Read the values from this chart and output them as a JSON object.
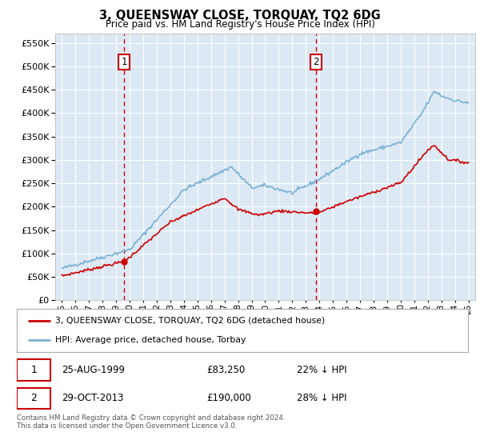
{
  "title": "3, QUEENSWAY CLOSE, TORQUAY, TQ2 6DG",
  "subtitle": "Price paid vs. HM Land Registry's House Price Index (HPI)",
  "red_label": "3, QUEENSWAY CLOSE, TORQUAY, TQ2 6DG (detached house)",
  "blue_label": "HPI: Average price, detached house, Torbay",
  "red_color": "#cc0000",
  "blue_color": "#7ab0d4",
  "vline_color": "#cc0000",
  "marker1_value": 83250,
  "marker2_value": 190000,
  "sale1_date": "25-AUG-1999",
  "sale1_price": "£83,250",
  "sale1_hpi": "22% ↓ HPI",
  "sale2_date": "29-OCT-2013",
  "sale2_price": "£190,000",
  "sale2_hpi": "28% ↓ HPI",
  "ylim": [
    0,
    570000
  ],
  "yticks": [
    0,
    50000,
    100000,
    150000,
    200000,
    250000,
    300000,
    350000,
    400000,
    450000,
    500000,
    550000
  ],
  "footer": "Contains HM Land Registry data © Crown copyright and database right 2024.\nThis data is licensed under the Open Government Licence v3.0.",
  "background_color": "#ffffff",
  "plot_bg_color": "#dce9f5",
  "grid_color": "#ffffff"
}
